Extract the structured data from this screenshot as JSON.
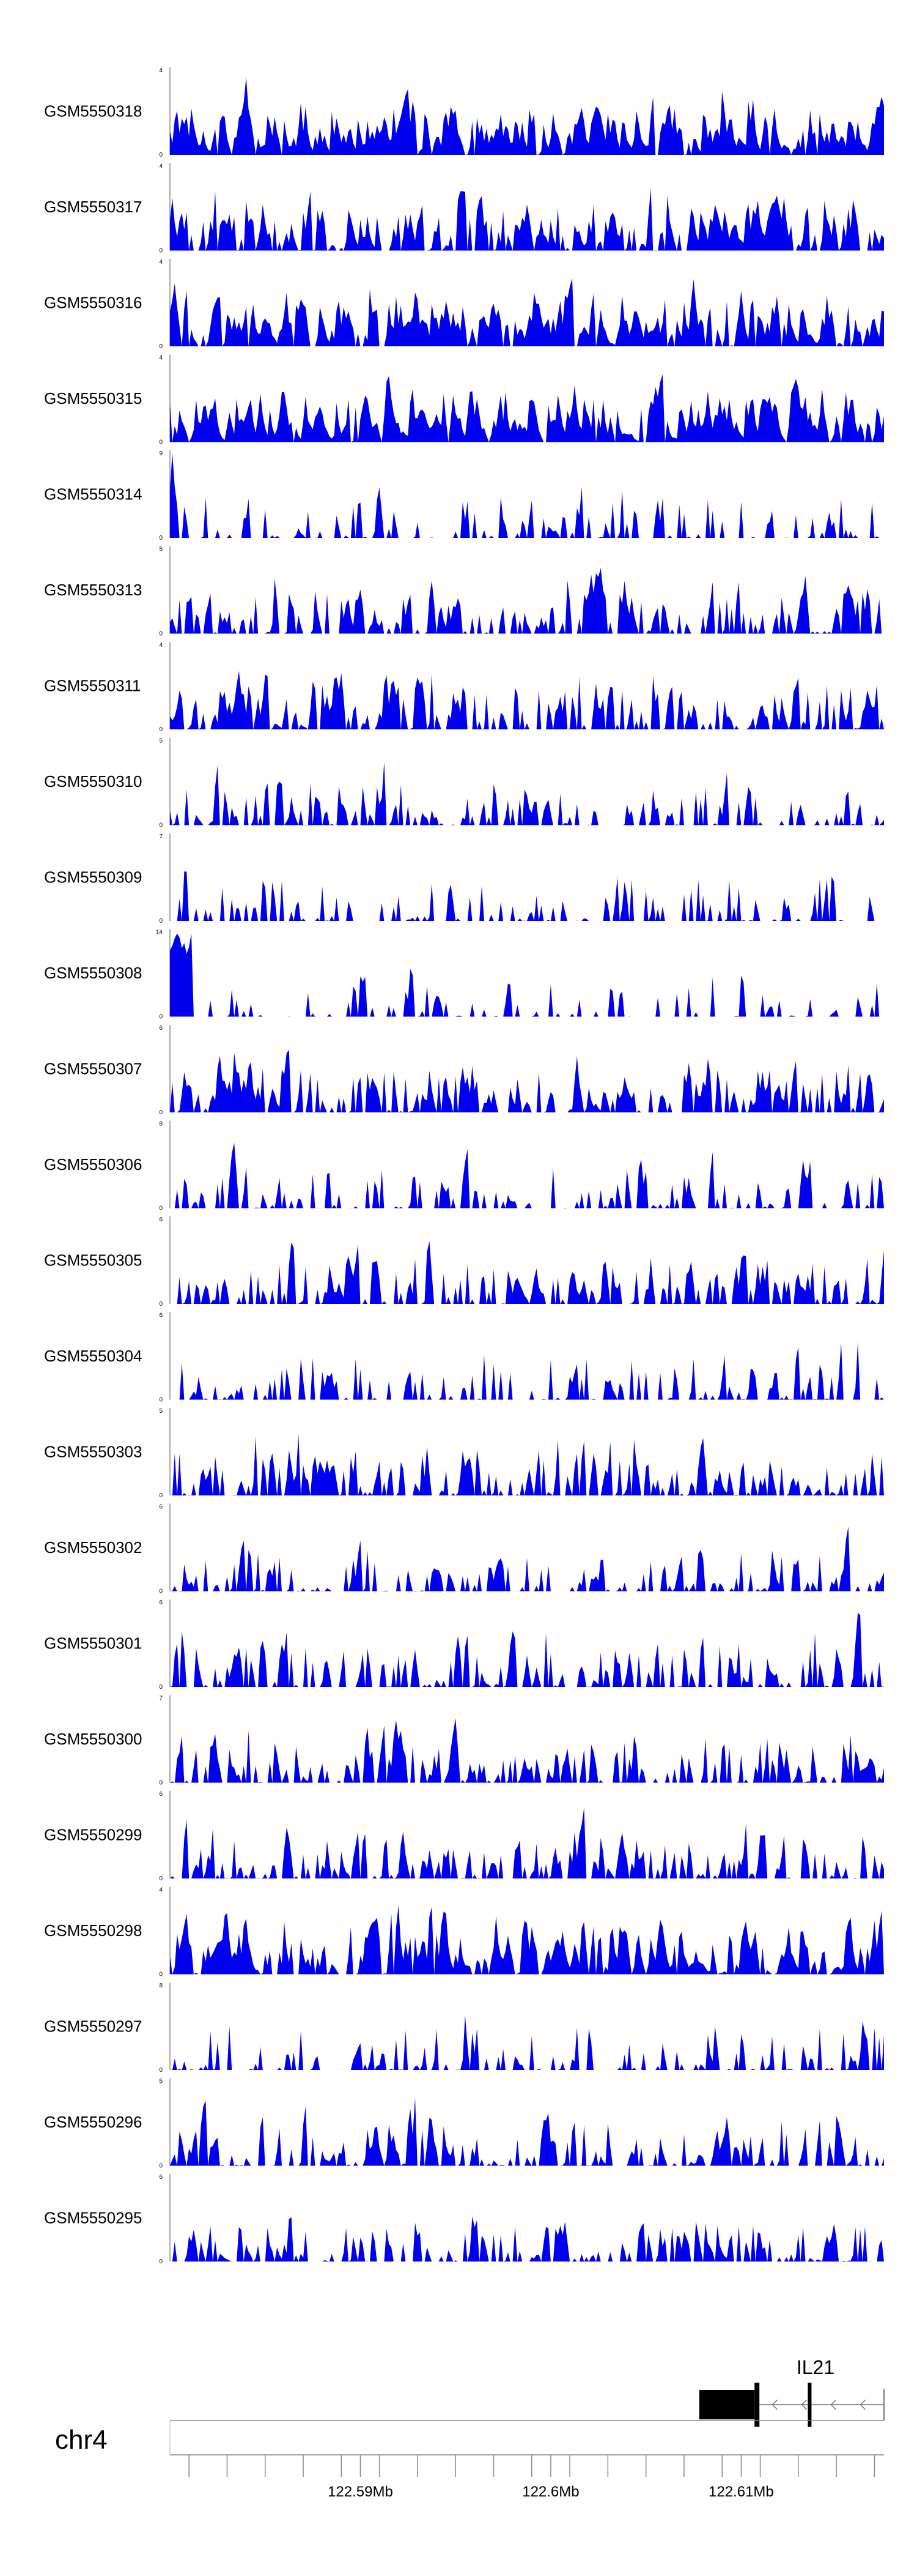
{
  "chart_data": {
    "type": "area",
    "fill_color": "#0000ee",
    "x_axis": {
      "chromosome": "chr4",
      "range": [
        122.58,
        122.6175
      ],
      "unit": "Mb",
      "tick_labels": [
        {
          "value": 122.59,
          "label": "122.59Mb"
        },
        {
          "value": 122.6,
          "label": "122.6Mb"
        },
        {
          "value": 122.61,
          "label": "122.61Mb"
        }
      ]
    },
    "gene": {
      "name": "IL21",
      "strand": "-",
      "start": 122.6078,
      "end": 122.6175,
      "exons": [
        [
          122.6078,
          122.6107
        ],
        [
          122.6107,
          122.611
        ],
        [
          122.6135,
          122.6137
        ]
      ]
    },
    "series": [
      {
        "name": "GSM5550318",
        "ymax": "4",
        "ymin": "0",
        "seed": 318,
        "density": 0.92
      },
      {
        "name": "GSM5550317",
        "ymax": "4",
        "ymin": "0",
        "seed": 317,
        "density": 0.8
      },
      {
        "name": "GSM5550316",
        "ymax": "4",
        "ymin": "0",
        "seed": 316,
        "density": 0.85
      },
      {
        "name": "GSM5550315",
        "ymax": "4",
        "ymin": "0",
        "seed": 315,
        "density": 0.95
      },
      {
        "name": "GSM5550314",
        "ymax": "9",
        "ymin": "0",
        "seed": 314,
        "density": 0.35
      },
      {
        "name": "GSM5550313",
        "ymax": "5",
        "ymin": "0",
        "seed": 313,
        "density": 0.6
      },
      {
        "name": "GSM5550311",
        "ymax": "4",
        "ymin": "0",
        "seed": 311,
        "density": 0.7
      },
      {
        "name": "GSM5550310",
        "ymax": "5",
        "ymin": "0",
        "seed": 310,
        "density": 0.5
      },
      {
        "name": "GSM5550309",
        "ymax": "7",
        "ymin": "0",
        "seed": 309,
        "density": 0.35
      },
      {
        "name": "GSM5550308",
        "ymax": "14",
        "ymin": "0",
        "seed": 308,
        "density": 0.25
      },
      {
        "name": "GSM5550307",
        "ymax": "6",
        "ymin": "0",
        "seed": 307,
        "density": 0.65
      },
      {
        "name": "GSM5550306",
        "ymax": "8",
        "ymin": "0",
        "seed": 306,
        "density": 0.45
      },
      {
        "name": "GSM5550305",
        "ymax": "6",
        "ymin": "0",
        "seed": 305,
        "density": 0.6
      },
      {
        "name": "GSM5550304",
        "ymax": "6",
        "ymin": "0",
        "seed": 304,
        "density": 0.4
      },
      {
        "name": "GSM5550303",
        "ymax": "5",
        "ymin": "0",
        "seed": 303,
        "density": 0.65
      },
      {
        "name": "GSM5550302",
        "ymax": "6",
        "ymin": "0",
        "seed": 302,
        "density": 0.55
      },
      {
        "name": "GSM5550301",
        "ymax": "6",
        "ymin": "0",
        "seed": 301,
        "density": 0.55
      },
      {
        "name": "GSM5550300",
        "ymax": "7",
        "ymin": "0",
        "seed": 300,
        "density": 0.65
      },
      {
        "name": "GSM5550299",
        "ymax": "6",
        "ymin": "0",
        "seed": 299,
        "density": 0.6
      },
      {
        "name": "GSM5550298",
        "ymax": "4",
        "ymin": "0",
        "seed": 298,
        "density": 0.85
      },
      {
        "name": "GSM5550297",
        "ymax": "8",
        "ymin": "0",
        "seed": 297,
        "density": 0.4
      },
      {
        "name": "GSM5550296",
        "ymax": "5",
        "ymin": "0",
        "seed": 296,
        "density": 0.65
      },
      {
        "name": "GSM5550295",
        "ymax": "6",
        "ymin": "0",
        "seed": 295,
        "density": 0.6
      }
    ]
  }
}
